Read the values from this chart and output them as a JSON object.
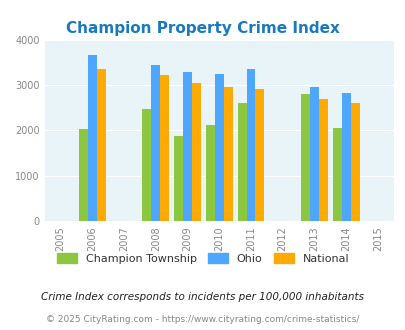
{
  "title": "Champion Property Crime Index",
  "years": [
    2006,
    2008,
    2009,
    2010,
    2011,
    2013,
    2014
  ],
  "champion": [
    2030,
    2470,
    1870,
    2120,
    2600,
    2800,
    2060
  ],
  "ohio": [
    3670,
    3430,
    3280,
    3250,
    3350,
    2950,
    2820
  ],
  "national": [
    3360,
    3210,
    3040,
    2950,
    2920,
    2700,
    2600
  ],
  "color_champion": "#8dc63f",
  "color_ohio": "#4da6ff",
  "color_national": "#ffaa00",
  "xlim": [
    2004.5,
    2015.5
  ],
  "ylim": [
    0,
    4000
  ],
  "yticks": [
    0,
    1000,
    2000,
    3000,
    4000
  ],
  "xticks": [
    2005,
    2006,
    2007,
    2008,
    2009,
    2010,
    2011,
    2012,
    2013,
    2014,
    2015
  ],
  "bg_color": "#e8f4f8",
  "legend_labels": [
    "Champion Township",
    "Ohio",
    "National"
  ],
  "footnote1": "Crime Index corresponds to incidents per 100,000 inhabitants",
  "footnote2": "© 2025 CityRating.com - https://www.cityrating.com/crime-statistics/",
  "bar_width": 0.28
}
